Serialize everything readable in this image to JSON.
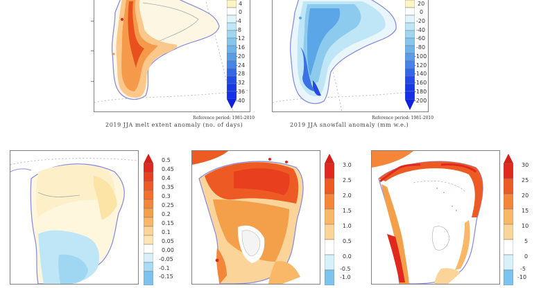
{
  "panels": {
    "melt_extent": {
      "reference": "Reference period: 1981-2010",
      "caption": "2019 JJA melt extent anomaly (no. of days)",
      "colorbar": {
        "labels": [
          "4",
          "0",
          "-4",
          "-8",
          "-12",
          "-16",
          "-20",
          "-24",
          "-28",
          "-32",
          "-36",
          "-40"
        ]
      }
    },
    "snowfall": {
      "reference": "Reference period: 1981-2010",
      "caption": "2019 JJA snowfall anomaly (mm w.e.)",
      "colorbar": {
        "labels": [
          "20",
          "0",
          "-20",
          "-40",
          "-60",
          "-80",
          "-100",
          "-120",
          "-140",
          "-160",
          "-180",
          "-200"
        ]
      }
    },
    "bottom_left": {
      "colorbar": {
        "labels": [
          "0.5",
          "0.45",
          "0.4",
          "0.35",
          "0.3",
          "0.25",
          "0.2",
          "0.15",
          "0.1",
          "0.05",
          "0.00",
          "-0.05",
          "-0.1",
          "-0.15"
        ]
      }
    },
    "bottom_middle": {
      "colorbar": {
        "labels": [
          "3.0",
          "2.5",
          "2.0",
          "1.5",
          "1.0",
          "0.5",
          "0.0",
          "-0.5",
          "-1.0"
        ]
      }
    },
    "bottom_right": {
      "colorbar": {
        "labels": [
          "30",
          "25",
          "20",
          "15",
          "10",
          "5",
          "0",
          "-5",
          "-10"
        ]
      }
    }
  },
  "colors": {
    "red_max": "#e0281e",
    "orange": "#f4a04a",
    "light_orange": "#fbd49a",
    "pale": "#fdf0c8",
    "light_blue": "#bfe6f7",
    "blue": "#6fb8ea",
    "dark_blue": "#1530e8",
    "outline": "#8a8ee0"
  }
}
